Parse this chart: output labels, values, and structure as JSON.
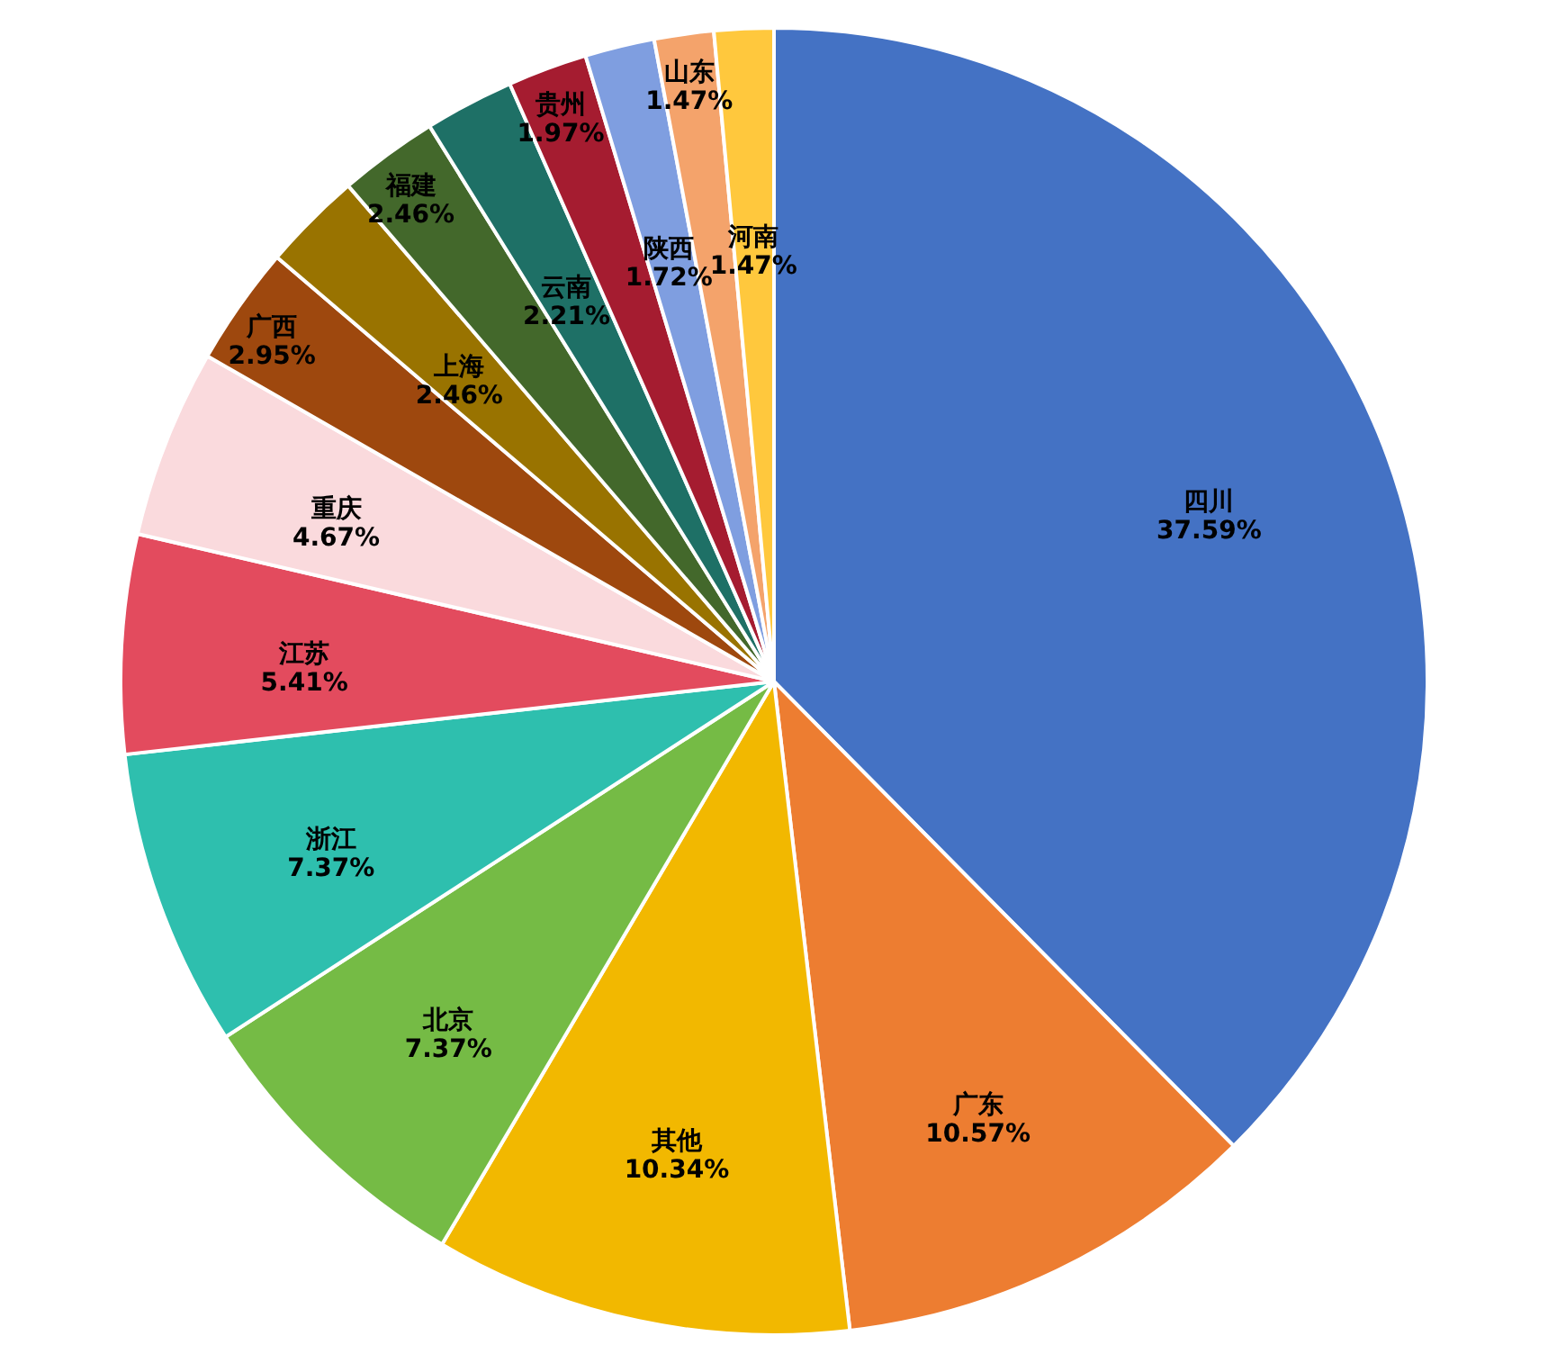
{
  "chart_data": {
    "type": "pie",
    "categories": [
      "四川",
      "广东",
      "其他",
      "北京",
      "浙江",
      "江苏",
      "重庆",
      "广西",
      "上海",
      "福建",
      "云南",
      "贵州",
      "陕西",
      "山东",
      "河南"
    ],
    "values": [
      37.59,
      10.57,
      10.34,
      7.37,
      7.37,
      5.41,
      4.67,
      2.95,
      2.46,
      2.46,
      2.21,
      1.97,
      1.72,
      1.47,
      1.47
    ],
    "value_labels": [
      "37.59%",
      "10.57%",
      "10.34%",
      "7.37%",
      "7.37%",
      "5.41%",
      "4.67%",
      "2.95%",
      "2.46%",
      "2.46%",
      "2.21%",
      "1.97%",
      "1.72%",
      "1.47%",
      "1.47%"
    ],
    "colors": [
      "#4472c4",
      "#ed7d31",
      "#f2b800",
      "#75bb45",
      "#2ebfae",
      "#e34b5e",
      "#fadadd",
      "#9e480e",
      "#997300",
      "#43682b",
      "#1e7066",
      "#a51c30",
      "#7f9ee0",
      "#f4a36b",
      "#ffc83d"
    ]
  }
}
